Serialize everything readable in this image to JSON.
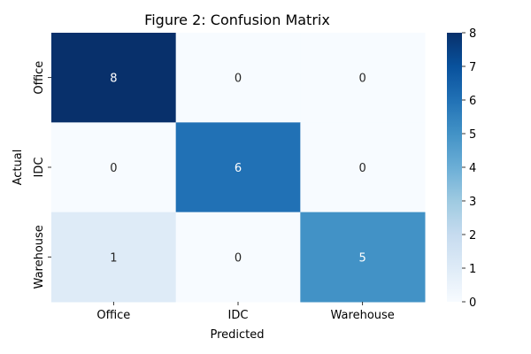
{
  "chart_data": {
    "type": "heatmap",
    "title": "Figure 2: Confusion Matrix",
    "xlabel": "Predicted",
    "ylabel": "Actual",
    "x_categories": [
      "Office",
      "IDC",
      "Warehouse"
    ],
    "y_categories": [
      "Office",
      "IDC",
      "Warehouse"
    ],
    "values": [
      [
        8,
        0,
        0
      ],
      [
        0,
        6,
        0
      ],
      [
        1,
        0,
        5
      ]
    ],
    "colorbar": {
      "min": 0,
      "max": 8,
      "ticks": [
        "0",
        "1",
        "2",
        "3",
        "4",
        "5",
        "6",
        "7",
        "8"
      ],
      "colormap": "Blues"
    }
  }
}
